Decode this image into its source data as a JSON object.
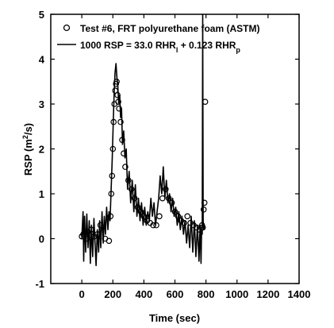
{
  "chart_data": {
    "type": "scatter",
    "xlabel": "Time (sec)",
    "ylabel_main": "RSP (m",
    "ylabel_sup": "2",
    "ylabel_tail": "/s)",
    "xlim": [
      -200,
      1400
    ],
    "ylim": [
      -1,
      5
    ],
    "xticks": [
      0,
      200,
      400,
      600,
      800,
      1000,
      1200,
      1400
    ],
    "yticks": [
      -1,
      0,
      1,
      2,
      3,
      4,
      5
    ],
    "grid": false,
    "legend_position": "top-right",
    "series": [
      {
        "name": "Test #6, FRT polyurethane foam (ASTM)",
        "marker": "open-circle",
        "x": [
          0,
          10,
          30,
          40,
          60,
          80,
          100,
          120,
          150,
          175,
          185,
          190,
          195,
          200,
          205,
          210,
          215,
          220,
          225,
          230,
          235,
          240,
          250,
          260,
          270,
          280,
          300,
          320,
          340,
          360,
          380,
          400,
          420,
          440,
          460,
          480,
          500,
          520,
          540,
          560,
          580,
          600,
          620,
          640,
          660,
          680,
          700,
          720,
          740,
          760,
          775,
          780,
          785,
          790,
          795
        ],
        "y": [
          0.05,
          0.1,
          0.0,
          0.15,
          0.2,
          0.05,
          0.1,
          0.3,
          0.0,
          -0.05,
          0.5,
          1.0,
          1.4,
          2.0,
          2.6,
          3.0,
          3.3,
          3.45,
          3.5,
          3.2,
          3.05,
          2.9,
          2.6,
          2.2,
          1.9,
          1.6,
          1.3,
          1.1,
          0.9,
          0.7,
          0.6,
          0.5,
          0.4,
          0.35,
          0.3,
          0.3,
          0.5,
          0.9,
          1.1,
          0.9,
          0.8,
          0.6,
          0.5,
          0.4,
          0.35,
          0.5,
          0.35,
          0.3,
          0.25,
          0.2,
          0.3,
          0.25,
          0.65,
          0.8,
          3.05
        ]
      },
      {
        "name": "1000 RSP = 33.0 RHR",
        "name_sub1": "l",
        "name_mid": " + 0.123 RHR",
        "name_sub2": "p",
        "marker": "line",
        "x": [
          0,
          8,
          12,
          18,
          25,
          32,
          40,
          48,
          55,
          62,
          70,
          78,
          85,
          92,
          100,
          108,
          115,
          122,
          130,
          138,
          145,
          152,
          160,
          168,
          175,
          182,
          190,
          196,
          202,
          208,
          214,
          220,
          226,
          232,
          238,
          244,
          250,
          256,
          262,
          270,
          278,
          286,
          295,
          305,
          315,
          325,
          335,
          345,
          355,
          365,
          375,
          385,
          395,
          405,
          415,
          425,
          435,
          445,
          455,
          465,
          475,
          485,
          495,
          505,
          515,
          525,
          535,
          545,
          555,
          565,
          575,
          585,
          595,
          605,
          615,
          625,
          635,
          645,
          655,
          665,
          675,
          685,
          695,
          705,
          715,
          725,
          735,
          745,
          755,
          762,
          768,
          772,
          776,
          779,
          782,
          786,
          790
        ],
        "y": [
          0.0,
          0.6,
          -0.5,
          0.5,
          -0.3,
          0.55,
          -0.2,
          0.4,
          -0.55,
          0.3,
          -0.4,
          0.45,
          -0.1,
          -0.6,
          0.2,
          -0.3,
          0.4,
          -0.2,
          0.6,
          -0.1,
          0.5,
          0.1,
          0.7,
          0.2,
          0.6,
          0.4,
          1.2,
          1.8,
          2.5,
          3.2,
          3.7,
          3.9,
          3.6,
          3.4,
          3.0,
          3.2,
          2.7,
          2.9,
          2.1,
          2.4,
          1.8,
          2.0,
          1.1,
          1.5,
          0.8,
          1.3,
          0.6,
          1.2,
          0.5,
          0.9,
          0.4,
          0.8,
          0.3,
          0.7,
          0.3,
          0.6,
          0.4,
          0.9,
          0.5,
          0.8,
          0.3,
          0.6,
          0.9,
          1.4,
          1.0,
          1.6,
          0.9,
          1.3,
          0.8,
          1.0,
          0.6,
          0.9,
          0.5,
          0.7,
          0.3,
          0.6,
          0.2,
          0.5,
          0.1,
          0.4,
          -0.1,
          0.3,
          -0.2,
          0.5,
          -0.3,
          0.4,
          -0.4,
          0.3,
          -0.5,
          0.3,
          -0.55,
          0.2,
          0.1,
          5.0,
          0.4,
          0.2,
          0.3
        ]
      }
    ]
  }
}
